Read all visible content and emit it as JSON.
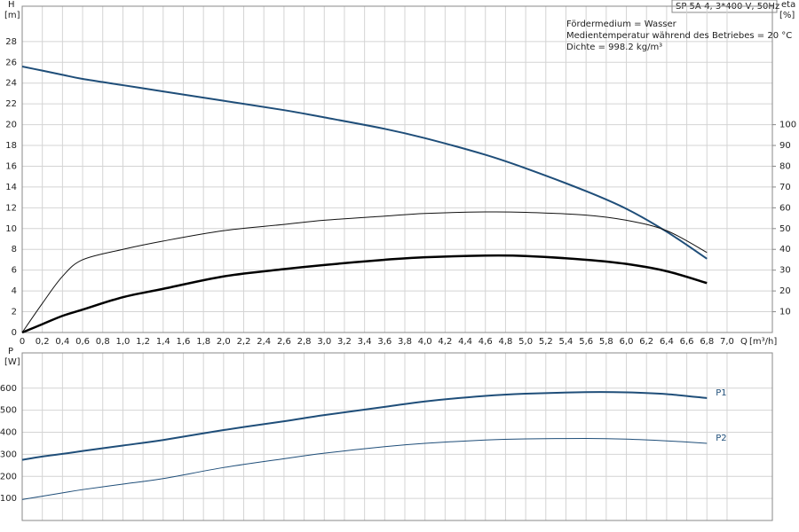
{
  "chart_data": [
    {
      "type": "line",
      "info_box": "SP 5A-4, 3*400 V, 50Hz",
      "notes": [
        "Fördermedium = Wasser",
        "Medientemperatur während des Betriebes = 20 °C",
        "Dichte = 998.2 kg/m³"
      ],
      "x_label": "Q",
      "x_unit": "[m³/h]",
      "y_label": "H",
      "y_unit": "[m]",
      "y2_label": "eta",
      "y2_unit": "[%]",
      "x": [
        0,
        0.2,
        0.4,
        0.6,
        1.0,
        1.4,
        2.0,
        2.6,
        3.0,
        3.6,
        4.0,
        4.6,
        5.0,
        5.6,
        6.0,
        6.4,
        6.8
      ],
      "series": [
        {
          "color": "#1f4e79",
          "width": 2,
          "values": [
            25.6,
            25.2,
            24.8,
            24.4,
            23.8,
            23.2,
            22.3,
            21.4,
            20.7,
            19.6,
            18.7,
            17.1,
            15.8,
            13.6,
            11.9,
            9.7,
            7.1
          ]
        },
        {
          "color": "#111111",
          "width": 1,
          "axis": "y2",
          "values": [
            0,
            14,
            27,
            35,
            40,
            44,
            49,
            52,
            54,
            56,
            57.3,
            58,
            57.8,
            56.5,
            54,
            49,
            38.5
          ]
        },
        {
          "color": "#000000",
          "width": 2.5,
          "axis": "y2",
          "values": [
            0,
            4,
            8,
            11,
            17,
            21,
            27,
            30.5,
            32.5,
            35,
            36.2,
            37,
            36.8,
            35,
            33,
            29.5,
            23.8
          ]
        }
      ],
      "xlim": [
        0,
        7.45
      ],
      "xticks": [
        0,
        {
          "value": 0.2,
          "label": "0,2"
        },
        {
          "value": 0.4,
          "label": "0,4"
        },
        {
          "value": 0.6,
          "label": "0,6"
        },
        {
          "value": 0.8,
          "label": "0,8"
        },
        {
          "value": 1.0,
          "label": "1,0"
        },
        {
          "value": 1.2,
          "label": "1,2"
        },
        {
          "value": 1.4,
          "label": "1,4"
        },
        {
          "value": 1.6,
          "label": "1,6"
        },
        {
          "value": 1.8,
          "label": "1,8"
        },
        {
          "value": 2.0,
          "label": "2,0"
        },
        {
          "value": 2.2,
          "label": "2,2"
        },
        {
          "value": 2.4,
          "label": "2,4"
        },
        {
          "value": 2.6,
          "label": "2,6"
        },
        {
          "value": 2.8,
          "label": "2,8"
        },
        {
          "value": 3.0,
          "label": "3,0"
        },
        {
          "value": 3.2,
          "label": "3,2"
        },
        {
          "value": 3.4,
          "label": "3,4"
        },
        {
          "value": 3.6,
          "label": "3,6"
        },
        {
          "value": 3.8,
          "label": "3,8"
        },
        {
          "value": 4.0,
          "label": "4,0"
        },
        {
          "value": 4.2,
          "label": "4,2"
        },
        {
          "value": 4.4,
          "label": "4,4"
        },
        {
          "value": 4.6,
          "label": "4,6"
        },
        {
          "value": 4.8,
          "label": "4,8"
        },
        {
          "value": 5.0,
          "label": "5,0"
        },
        {
          "value": 5.2,
          "label": "5,2"
        },
        {
          "value": 5.4,
          "label": "5,4"
        },
        {
          "value": 5.6,
          "label": "5,6"
        },
        {
          "value": 5.8,
          "label": "5,8"
        },
        {
          "value": 6.0,
          "label": "6,0"
        },
        {
          "value": 6.2,
          "label": "6,2"
        },
        {
          "value": 6.4,
          "label": "6,4"
        },
        {
          "value": 6.6,
          "label": "6,6"
        },
        {
          "value": 6.8,
          "label": "6,8"
        },
        {
          "value": 7.0,
          "label": "7,0"
        }
      ],
      "ylim": [
        0,
        31.4
      ],
      "yticks": [
        0,
        2,
        4,
        6,
        8,
        10,
        12,
        14,
        16,
        18,
        20,
        22,
        24,
        26,
        28
      ],
      "y2lim": [
        0,
        157
      ],
      "y2ticks": [
        10,
        20,
        30,
        40,
        50,
        60,
        70,
        80,
        90,
        100
      ],
      "grid": true
    },
    {
      "type": "line",
      "y_label": "P",
      "y_unit": "[W]",
      "x": [
        0,
        0.2,
        0.4,
        0.6,
        1.0,
        1.4,
        2.0,
        2.6,
        3.0,
        3.6,
        4.0,
        4.6,
        5.0,
        5.6,
        6.0,
        6.4,
        6.8
      ],
      "series": [
        {
          "name": "P1",
          "color": "#1f4e79",
          "width": 2,
          "values": [
            275,
            290,
            302,
            315,
            340,
            365,
            410,
            450,
            478,
            515,
            540,
            565,
            575,
            582,
            581,
            573,
            555
          ]
        },
        {
          "name": "P2",
          "color": "#1f4e79",
          "width": 1,
          "values": [
            95,
            110,
            125,
            140,
            165,
            190,
            240,
            280,
            305,
            335,
            350,
            365,
            370,
            372,
            369,
            361,
            350
          ]
        }
      ],
      "xlim": [
        0,
        7.45
      ],
      "ylim": [
        0,
        760
      ],
      "yticks": [
        100,
        200,
        300,
        400,
        500,
        600
      ],
      "grid": true
    }
  ]
}
